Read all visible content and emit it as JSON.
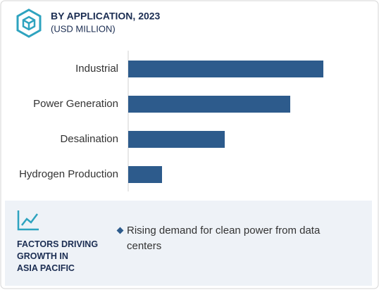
{
  "chart_data": {
    "type": "bar",
    "orientation": "horizontal",
    "title": "BY APPLICATION, 2023",
    "subtitle": "(USD MILLION)",
    "categories": [
      "Industrial",
      "Power Generation",
      "Desalination",
      "Hydrogen Production"
    ],
    "values": [
      277,
      230,
      137,
      48
    ],
    "color": "#2d5b8c",
    "xlim": [
      0,
      300
    ]
  },
  "factors": {
    "title_lines": [
      "FACTORS DRIVING",
      "GROWTH IN",
      "ASIA PACIFIC"
    ],
    "items": [
      "Rising demand for clean power from data centers"
    ]
  }
}
